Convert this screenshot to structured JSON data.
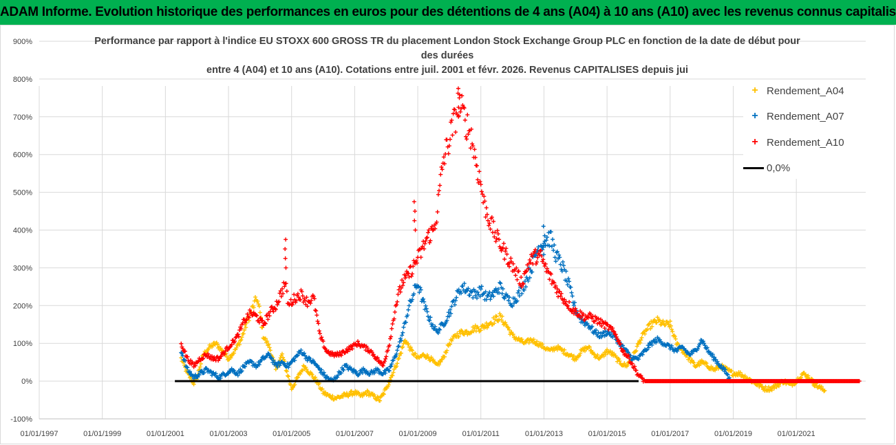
{
  "banner": "ADAM Informe. Evolution historique des performances en euros pour des détentions de 4 ans (A04) à 10 ans (A10) avec les revenus connus capitalisés",
  "chart_data": {
    "type": "scatter",
    "title_lines": [
      "Performance par rapport à l'indice EU STOXX 600 GROSS TR  du placement London Stock Exchange Group PLC en fonction de la date de début pour",
      "des durées",
      "entre 4 (A04) et 10 ans (A10).  Cotations entre juil. 2001 et févr. 2026. Revenus CAPITALISES depuis jui"
    ],
    "x_tick_labels": [
      "01/01/1997",
      "01/01/1999",
      "01/01/2001",
      "01/01/2003",
      "01/01/2005",
      "01/01/2007",
      "01/01/2009",
      "01/01/2011",
      "01/01/2013",
      "01/01/2015",
      "01/01/2017",
      "01/01/2019",
      "01/01/2021"
    ],
    "xlim": [
      1997.0,
      2023.2
    ],
    "y_tick_labels": [
      "-100%",
      "0%",
      "100%",
      "200%",
      "300%",
      "400%",
      "500%",
      "600%",
      "700%",
      "800%",
      "900%"
    ],
    "ylim": [
      -100,
      900
    ],
    "series": [
      {
        "name": "Rendement_A04",
        "color": "#ffc000",
        "marker": "+",
        "points": [
          [
            2001.5,
            60
          ],
          [
            2001.7,
            20
          ],
          [
            2001.9,
            -5
          ],
          [
            2002.0,
            10
          ],
          [
            2002.2,
            70
          ],
          [
            2002.4,
            90
          ],
          [
            2002.6,
            100
          ],
          [
            2002.8,
            80
          ],
          [
            2003.0,
            60
          ],
          [
            2003.2,
            80
          ],
          [
            2003.4,
            110
          ],
          [
            2003.6,
            160
          ],
          [
            2003.8,
            200
          ],
          [
            2003.9,
            220
          ],
          [
            2004.0,
            180
          ],
          [
            2004.1,
            120
          ],
          [
            2004.3,
            90
          ],
          [
            2004.5,
            30
          ],
          [
            2004.7,
            70
          ],
          [
            2004.9,
            10
          ],
          [
            2005.0,
            -20
          ],
          [
            2005.2,
            10
          ],
          [
            2005.4,
            40
          ],
          [
            2005.6,
            20
          ],
          [
            2005.8,
            0
          ],
          [
            2006.0,
            -30
          ],
          [
            2006.2,
            -40
          ],
          [
            2006.4,
            -45
          ],
          [
            2006.6,
            -40
          ],
          [
            2006.8,
            -35
          ],
          [
            2007.0,
            -30
          ],
          [
            2007.2,
            -40
          ],
          [
            2007.4,
            -30
          ],
          [
            2007.6,
            -40
          ],
          [
            2007.8,
            -50
          ],
          [
            2008.0,
            -20
          ],
          [
            2008.2,
            20
          ],
          [
            2008.4,
            60
          ],
          [
            2008.6,
            110
          ],
          [
            2008.8,
            80
          ],
          [
            2009.0,
            60
          ],
          [
            2009.2,
            70
          ],
          [
            2009.4,
            60
          ],
          [
            2009.6,
            40
          ],
          [
            2009.8,
            60
          ],
          [
            2010.0,
            100
          ],
          [
            2010.2,
            120
          ],
          [
            2010.4,
            130
          ],
          [
            2010.6,
            130
          ],
          [
            2010.8,
            140
          ],
          [
            2011.0,
            140
          ],
          [
            2011.2,
            150
          ],
          [
            2011.4,
            160
          ],
          [
            2011.6,
            170
          ],
          [
            2011.8,
            150
          ],
          [
            2012.0,
            120
          ],
          [
            2012.2,
            110
          ],
          [
            2012.4,
            100
          ],
          [
            2012.6,
            110
          ],
          [
            2012.8,
            100
          ],
          [
            2013.0,
            90
          ],
          [
            2013.2,
            80
          ],
          [
            2013.4,
            90
          ],
          [
            2013.6,
            80
          ],
          [
            2013.8,
            70
          ],
          [
            2014.0,
            60
          ],
          [
            2014.2,
            80
          ],
          [
            2014.4,
            90
          ],
          [
            2014.6,
            70
          ],
          [
            2014.8,
            60
          ],
          [
            2015.0,
            80
          ],
          [
            2015.2,
            70
          ],
          [
            2015.4,
            50
          ],
          [
            2015.6,
            40
          ],
          [
            2015.8,
            60
          ],
          [
            2016.0,
            100
          ],
          [
            2016.2,
            130
          ],
          [
            2016.4,
            150
          ],
          [
            2016.6,
            160
          ],
          [
            2016.8,
            150
          ],
          [
            2017.0,
            150
          ],
          [
            2017.2,
            100
          ],
          [
            2017.4,
            80
          ],
          [
            2017.6,
            60
          ],
          [
            2017.8,
            40
          ],
          [
            2018.0,
            50
          ],
          [
            2018.2,
            40
          ],
          [
            2018.4,
            30
          ],
          [
            2018.6,
            40
          ],
          [
            2018.8,
            30
          ],
          [
            2019.0,
            20
          ],
          [
            2019.2,
            20
          ],
          [
            2019.4,
            10
          ],
          [
            2019.6,
            0
          ],
          [
            2019.8,
            -10
          ],
          [
            2020.0,
            -20
          ],
          [
            2020.2,
            -20
          ],
          [
            2020.4,
            -10
          ],
          [
            2020.6,
            0
          ],
          [
            2020.8,
            -10
          ],
          [
            2021.0,
            0
          ],
          [
            2021.2,
            20
          ],
          [
            2021.4,
            10
          ],
          [
            2021.6,
            -10
          ],
          [
            2021.8,
            -20
          ],
          [
            2021.9,
            -25
          ]
        ]
      },
      {
        "name": "Rendement_A07",
        "color": "#0070c0",
        "marker": "+",
        "points": [
          [
            2001.5,
            80
          ],
          [
            2001.7,
            30
          ],
          [
            2001.9,
            10
          ],
          [
            2002.1,
            20
          ],
          [
            2002.3,
            30
          ],
          [
            2002.5,
            20
          ],
          [
            2002.7,
            10
          ],
          [
            2002.9,
            20
          ],
          [
            2003.1,
            30
          ],
          [
            2003.3,
            20
          ],
          [
            2003.5,
            40
          ],
          [
            2003.7,
            50
          ],
          [
            2003.9,
            40
          ],
          [
            2004.1,
            60
          ],
          [
            2004.3,
            70
          ],
          [
            2004.5,
            40
          ],
          [
            2004.7,
            50
          ],
          [
            2004.9,
            40
          ],
          [
            2005.1,
            60
          ],
          [
            2005.3,
            80
          ],
          [
            2005.5,
            60
          ],
          [
            2005.7,
            50
          ],
          [
            2005.9,
            30
          ],
          [
            2006.1,
            10
          ],
          [
            2006.3,
            0
          ],
          [
            2006.5,
            20
          ],
          [
            2006.7,
            40
          ],
          [
            2006.9,
            30
          ],
          [
            2007.1,
            20
          ],
          [
            2007.3,
            30
          ],
          [
            2007.5,
            20
          ],
          [
            2007.7,
            30
          ],
          [
            2007.9,
            20
          ],
          [
            2008.1,
            30
          ],
          [
            2008.3,
            70
          ],
          [
            2008.5,
            120
          ],
          [
            2008.7,
            190
          ],
          [
            2008.9,
            240
          ],
          [
            2009.0,
            260
          ],
          [
            2009.2,
            200
          ],
          [
            2009.4,
            160
          ],
          [
            2009.6,
            130
          ],
          [
            2009.8,
            150
          ],
          [
            2010.0,
            180
          ],
          [
            2010.2,
            220
          ],
          [
            2010.4,
            250
          ],
          [
            2010.6,
            240
          ],
          [
            2010.8,
            230
          ],
          [
            2011.0,
            240
          ],
          [
            2011.2,
            220
          ],
          [
            2011.4,
            230
          ],
          [
            2011.6,
            250
          ],
          [
            2011.8,
            220
          ],
          [
            2012.0,
            210
          ],
          [
            2012.2,
            230
          ],
          [
            2012.4,
            260
          ],
          [
            2012.6,
            300
          ],
          [
            2012.8,
            350
          ],
          [
            2013.0,
            370
          ],
          [
            2013.2,
            380
          ],
          [
            2013.4,
            330
          ],
          [
            2013.6,
            300
          ],
          [
            2013.8,
            250
          ],
          [
            2014.0,
            190
          ],
          [
            2014.2,
            160
          ],
          [
            2014.4,
            150
          ],
          [
            2014.6,
            130
          ],
          [
            2014.8,
            120
          ],
          [
            2015.0,
            130
          ],
          [
            2015.2,
            120
          ],
          [
            2015.4,
            100
          ],
          [
            2015.6,
            80
          ],
          [
            2015.8,
            60
          ],
          [
            2016.0,
            60
          ],
          [
            2016.2,
            80
          ],
          [
            2016.4,
            100
          ],
          [
            2016.6,
            110
          ],
          [
            2016.8,
            100
          ],
          [
            2017.0,
            90
          ],
          [
            2017.2,
            80
          ],
          [
            2017.4,
            90
          ],
          [
            2017.6,
            70
          ],
          [
            2017.8,
            80
          ],
          [
            2018.0,
            110
          ],
          [
            2018.2,
            80
          ],
          [
            2018.4,
            60
          ],
          [
            2018.6,
            40
          ],
          [
            2018.8,
            20
          ],
          [
            2018.9,
            0
          ]
        ]
      },
      {
        "name": "Rendement_A10",
        "color": "#ff0000",
        "marker": "+",
        "points": [
          [
            2001.5,
            100
          ],
          [
            2001.7,
            60
          ],
          [
            2001.9,
            40
          ],
          [
            2002.1,
            60
          ],
          [
            2002.3,
            70
          ],
          [
            2002.5,
            60
          ],
          [
            2002.7,
            60
          ],
          [
            2002.9,
            80
          ],
          [
            2003.1,
            100
          ],
          [
            2003.3,
            120
          ],
          [
            2003.5,
            160
          ],
          [
            2003.7,
            180
          ],
          [
            2003.9,
            170
          ],
          [
            2004.1,
            150
          ],
          [
            2004.3,
            180
          ],
          [
            2004.5,
            200
          ],
          [
            2004.7,
            240
          ],
          [
            2004.8,
            260
          ],
          [
            2004.9,
            200
          ],
          [
            2005.1,
            220
          ],
          [
            2005.3,
            230
          ],
          [
            2005.5,
            210
          ],
          [
            2005.7,
            220
          ],
          [
            2005.9,
            120
          ],
          [
            2006.1,
            80
          ],
          [
            2006.3,
            70
          ],
          [
            2006.5,
            70
          ],
          [
            2006.7,
            80
          ],
          [
            2006.9,
            90
          ],
          [
            2007.1,
            100
          ],
          [
            2007.3,
            90
          ],
          [
            2007.5,
            80
          ],
          [
            2007.7,
            60
          ],
          [
            2007.9,
            40
          ],
          [
            2008.1,
            100
          ],
          [
            2008.3,
            200
          ],
          [
            2008.5,
            260
          ],
          [
            2008.7,
            280
          ],
          [
            2008.9,
            310
          ],
          [
            2009.1,
            340
          ],
          [
            2009.3,
            380
          ],
          [
            2009.5,
            400
          ],
          [
            2009.6,
            440
          ],
          [
            2009.8,
            580
          ],
          [
            2010.0,
            640
          ],
          [
            2010.2,
            700
          ],
          [
            2010.3,
            740
          ],
          [
            2010.5,
            690
          ],
          [
            2010.7,
            650
          ],
          [
            2010.8,
            600
          ],
          [
            2011.0,
            520
          ],
          [
            2011.1,
            470
          ],
          [
            2011.3,
            420
          ],
          [
            2011.5,
            380
          ],
          [
            2011.7,
            350
          ],
          [
            2011.9,
            320
          ],
          [
            2012.1,
            290
          ],
          [
            2012.3,
            260
          ],
          [
            2012.5,
            310
          ],
          [
            2012.7,
            330
          ],
          [
            2012.9,
            330
          ],
          [
            2013.1,
            290
          ],
          [
            2013.3,
            260
          ],
          [
            2013.5,
            230
          ],
          [
            2013.7,
            210
          ],
          [
            2013.9,
            190
          ],
          [
            2014.1,
            180
          ],
          [
            2014.3,
            170
          ],
          [
            2014.5,
            170
          ],
          [
            2014.7,
            160
          ],
          [
            2014.9,
            150
          ],
          [
            2015.1,
            140
          ],
          [
            2015.3,
            120
          ],
          [
            2015.5,
            80
          ],
          [
            2015.7,
            60
          ],
          [
            2015.9,
            30
          ],
          [
            2016.0,
            15
          ],
          [
            2016.2,
            0
          ],
          [
            2016.6,
            0
          ],
          [
            2017.0,
            0
          ],
          [
            2017.5,
            0
          ],
          [
            2018.0,
            0
          ],
          [
            2018.5,
            0
          ],
          [
            2019.0,
            0
          ],
          [
            2019.5,
            0
          ],
          [
            2020.0,
            0
          ],
          [
            2020.5,
            0
          ],
          [
            2021.0,
            0
          ],
          [
            2021.5,
            0
          ],
          [
            2022.0,
            0
          ],
          [
            2022.5,
            0
          ],
          [
            2023.0,
            0
          ]
        ]
      },
      {
        "name": "0,0%",
        "color": "#000000",
        "marker": "line",
        "points": [
          [
            2001.3,
            0
          ],
          [
            2016.0,
            0
          ]
        ]
      }
    ],
    "spikes": [
      {
        "series": "Rendement_A10",
        "x": 2004.8,
        "y": 375
      },
      {
        "series": "Rendement_A10",
        "x": 2008.9,
        "y": 475
      },
      {
        "series": "Rendement_A10",
        "x": 2010.3,
        "y": 775
      },
      {
        "series": "Rendement_A07",
        "x": 2013.0,
        "y": 410
      }
    ]
  },
  "legend": {
    "items": [
      {
        "label": "Rendement_A04",
        "color": "#ffc000",
        "marker": "+"
      },
      {
        "label": "Rendement_A07",
        "color": "#0070c0",
        "marker": "+"
      },
      {
        "label": "Rendement_A10",
        "color": "#ff0000",
        "marker": "+"
      },
      {
        "label": "0,0%",
        "color": "#000000",
        "marker": "line"
      }
    ]
  }
}
